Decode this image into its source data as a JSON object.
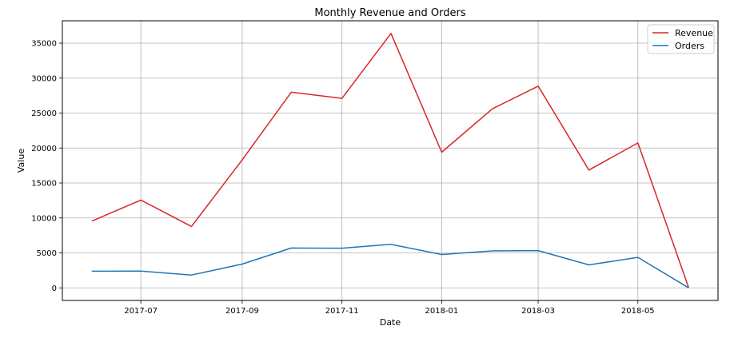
{
  "chart_data": {
    "type": "line",
    "title": "Monthly Revenue and Orders",
    "xlabel": "Date",
    "ylabel": "Value",
    "x": [
      "2017-06-01",
      "2017-07-01",
      "2017-08-01",
      "2017-09-01",
      "2017-10-01",
      "2017-11-01",
      "2017-12-01",
      "2018-01-01",
      "2018-02-01",
      "2018-03-01",
      "2018-04-01",
      "2018-05-01",
      "2018-06-01"
    ],
    "series": [
      {
        "name": "Revenue",
        "color": "#d62728",
        "values": [
          9550,
          12550,
          8780,
          18300,
          27980,
          27100,
          36400,
          19400,
          25600,
          28850,
          16850,
          20730,
          50
        ]
      },
      {
        "name": "Orders",
        "color": "#1f77b4",
        "values": [
          2380,
          2400,
          1830,
          3400,
          5700,
          5680,
          6220,
          4770,
          5290,
          5330,
          3290,
          4360,
          10
        ]
      }
    ],
    "x_ticks": [
      "2017-07",
      "2017-09",
      "2017-11",
      "2018-01",
      "2018-03",
      "2018-05"
    ],
    "y_ticks": [
      0,
      5000,
      10000,
      15000,
      20000,
      25000,
      30000,
      35000
    ],
    "ylim": [
      -1800,
      38200
    ],
    "xlim": [
      "2017-05-14",
      "2018-06-19"
    ],
    "grid": true,
    "legend_position": "top-right"
  }
}
